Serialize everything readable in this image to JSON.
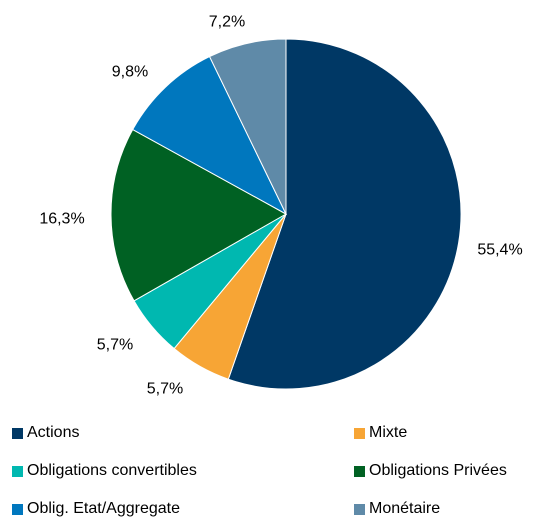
{
  "chart_data": {
    "type": "pie",
    "title": "",
    "categories": [
      "Actions",
      "Mixte",
      "Obligations convertibles",
      "Obligations Privées",
      "Oblig. Etat/Aggregate",
      "Monétaire"
    ],
    "values": [
      55.4,
      5.7,
      5.7,
      16.3,
      9.8,
      7.2
    ],
    "data_labels": [
      "55,4%",
      "5,7%",
      "5,7%",
      "16,3%",
      "9,8%",
      "7,2%"
    ],
    "colors": [
      "#003865",
      "#F7A535",
      "#00B8B0",
      "#006123",
      "#0077BE",
      "#5F8AA8"
    ],
    "legend_position": "bottom"
  }
}
